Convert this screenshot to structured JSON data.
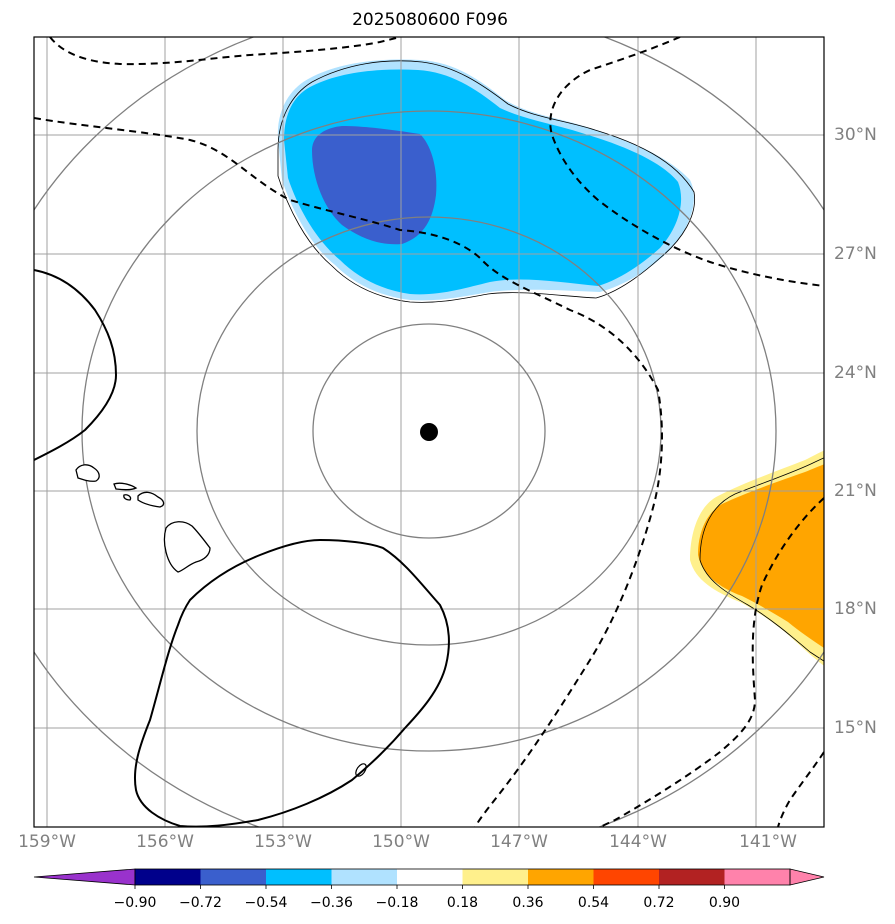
{
  "title": "2025080600 F096",
  "map": {
    "lon_labels": [
      "159°W",
      "156°W",
      "153°W",
      "150°W",
      "147°W",
      "144°W",
      "141°W"
    ],
    "lat_labels": [
      "30°N",
      "27°N",
      "24°N",
      "21°N",
      "18°N",
      "15°N"
    ],
    "center_marker": "storm-center"
  },
  "colorbar": {
    "ticks": [
      "−0.90",
      "−0.72",
      "−0.54",
      "−0.36",
      "−0.18",
      "0.18",
      "0.36",
      "0.54",
      "0.72",
      "0.90"
    ],
    "colors": [
      "#9932cc",
      "#00008b",
      "#3a5fcd",
      "#00bfff",
      "#b0e2ff",
      "#ffffff",
      "#fff08c",
      "#ffa500",
      "#ff4500",
      "#b22222",
      "#ff82ab"
    ]
  },
  "colors": {
    "strong_negative": "#3a5fcd",
    "negative": "#00bfff",
    "weak_negative": "#b0e2ff",
    "weak_positive": "#fff08c",
    "positive": "#ffa500",
    "grid": "#a0a0a0",
    "range_rings": "#808080"
  }
}
